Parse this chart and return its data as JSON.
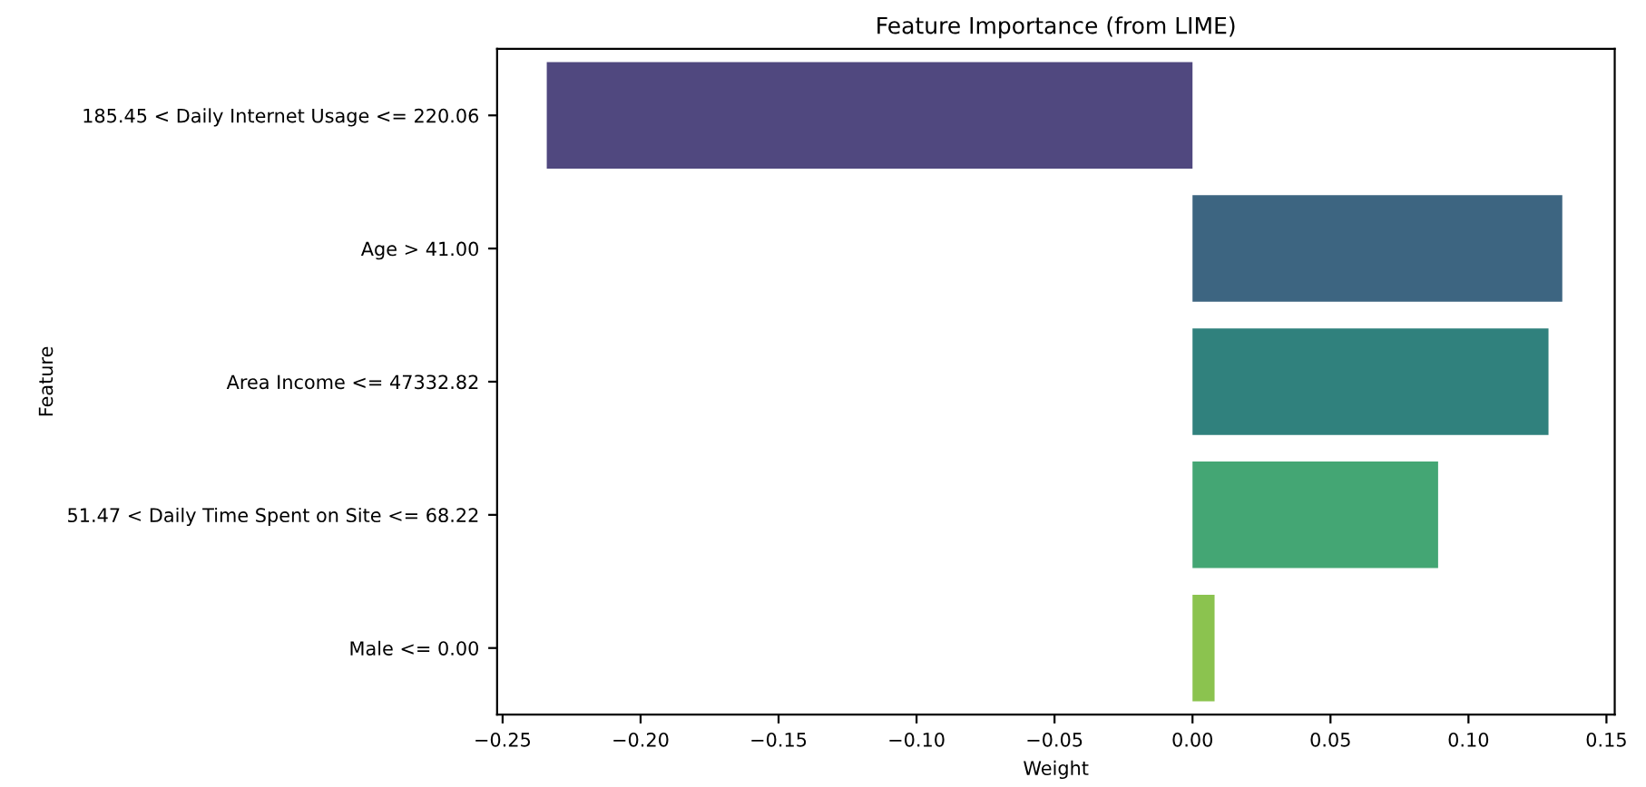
{
  "chart_data": {
    "type": "bar",
    "orientation": "horizontal",
    "title": "Feature Importance (from LIME)",
    "xlabel": "Weight",
    "ylabel": "Feature",
    "categories": [
      "185.45 < Daily Internet Usage <= 220.06",
      "Age > 41.00",
      "Area Income <= 47332.82",
      "51.47 < Daily Time Spent on Site <= 68.22",
      "Male <= 0.00"
    ],
    "values": [
      -0.234,
      0.134,
      0.129,
      0.089,
      0.008
    ],
    "colors": [
      "#50487f",
      "#3d6581",
      "#30817d",
      "#44a674",
      "#8bc34f"
    ],
    "xlim": [
      -0.252,
      0.153
    ],
    "xticks": [
      {
        "value": -0.25,
        "label": "−0.25"
      },
      {
        "value": -0.2,
        "label": "−0.20"
      },
      {
        "value": -0.15,
        "label": "−0.15"
      },
      {
        "value": -0.1,
        "label": "−0.10"
      },
      {
        "value": -0.05,
        "label": "−0.05"
      },
      {
        "value": 0,
        "label": "0.00"
      },
      {
        "value": 0.05,
        "label": "0.05"
      },
      {
        "value": 0.1,
        "label": "0.10"
      },
      {
        "value": 0.15,
        "label": "0.15"
      }
    ]
  }
}
